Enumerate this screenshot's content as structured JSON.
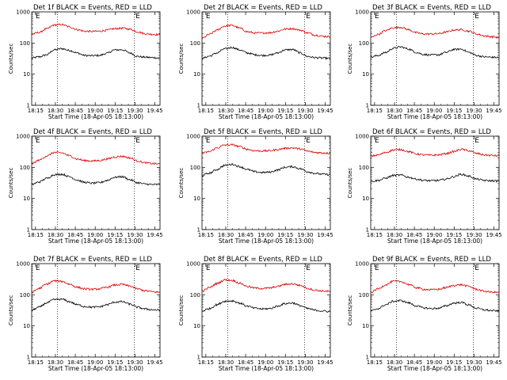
{
  "chart_data": [
    {
      "type": "line",
      "title": "Det 1f BLACK = Events, RED = LLD",
      "xlabel": "Start Time (18-Apr-05 18:13:00)",
      "ylabel": "Counts/sec",
      "yscale": "log",
      "ylim": [
        1,
        1000
      ],
      "x_tick_labels": [
        "18:15",
        "18:30",
        "18:45",
        "19:00",
        "19:15",
        "19:30",
        "19:45"
      ],
      "y_tick_labels": [
        "1",
        "10",
        "100",
        "1000"
      ],
      "event_marker_label": "E",
      "series": [
        {
          "color": "#000000",
          "values": [
            33,
            36,
            42,
            60,
            66,
            58,
            48,
            40,
            39,
            40,
            47,
            60,
            61,
            48,
            37,
            35,
            34,
            33
          ]
        },
        {
          "color": "#dd0000",
          "values": [
            190,
            220,
            285,
            380,
            390,
            330,
            270,
            240,
            235,
            240,
            260,
            290,
            300,
            280,
            230,
            200,
            190,
            185
          ]
        }
      ]
    },
    {
      "type": "line",
      "title": "Det 2f BLACK = Events, RED = LLD",
      "xlabel": "Start Time (18-Apr-05 18:13:00)",
      "ylabel": "Counts/sec",
      "yscale": "log",
      "ylim": [
        1,
        1000
      ],
      "x_tick_labels": [
        "18:15",
        "18:30",
        "18:45",
        "19:00",
        "19:15",
        "19:30",
        "19:45"
      ],
      "y_tick_labels": [
        "1",
        "10",
        "100",
        "1000"
      ],
      "event_marker_label": "E",
      "series": [
        {
          "color": "#000000",
          "values": [
            32,
            38,
            48,
            65,
            72,
            60,
            48,
            42,
            40,
            41,
            48,
            60,
            62,
            48,
            37,
            34,
            33,
            32
          ]
        },
        {
          "color": "#dd0000",
          "values": [
            140,
            190,
            260,
            350,
            370,
            300,
            230,
            210,
            210,
            215,
            240,
            280,
            290,
            260,
            210,
            180,
            165,
            160
          ]
        }
      ]
    },
    {
      "type": "line",
      "title": "Det 3f BLACK = Events, RED = LLD",
      "xlabel": "Start Time (18-Apr-05 18:13:00)",
      "ylabel": "Counts/sec",
      "yscale": "log",
      "ylim": [
        1,
        1000
      ],
      "x_tick_labels": [
        "18:15",
        "18:30",
        "18:45",
        "19:00",
        "19:15",
        "19:30",
        "19:45"
      ],
      "y_tick_labels": [
        "1",
        "10",
        "100",
        "1000"
      ],
      "event_marker_label": "E",
      "series": [
        {
          "color": "#000000",
          "values": [
            35,
            40,
            50,
            68,
            75,
            64,
            50,
            43,
            41,
            42,
            50,
            62,
            64,
            50,
            40,
            36,
            35,
            34
          ]
        },
        {
          "color": "#dd0000",
          "values": [
            150,
            190,
            250,
            310,
            320,
            270,
            215,
            195,
            195,
            200,
            225,
            260,
            270,
            240,
            195,
            170,
            160,
            150
          ]
        }
      ]
    },
    {
      "type": "line",
      "title": "Det 4f BLACK = Events, RED = LLD",
      "xlabel": "Start Time (18-Apr-05 18:13:00)",
      "ylabel": "Counts/sec",
      "yscale": "log",
      "ylim": [
        1,
        1000
      ],
      "x_tick_labels": [
        "18:15",
        "18:30",
        "18:45",
        "19:00",
        "19:15",
        "19:30",
        "19:45"
      ],
      "y_tick_labels": [
        "1",
        "10",
        "100",
        "1000"
      ],
      "event_marker_label": "E",
      "series": [
        {
          "color": "#000000",
          "values": [
            28,
            34,
            44,
            58,
            60,
            50,
            39,
            33,
            31,
            32,
            38,
            48,
            50,
            40,
            32,
            29,
            28,
            28
          ]
        },
        {
          "color": "#dd0000",
          "values": [
            130,
            170,
            230,
            300,
            290,
            235,
            185,
            165,
            160,
            165,
            185,
            215,
            225,
            200,
            160,
            140,
            132,
            128
          ]
        }
      ]
    },
    {
      "type": "line",
      "title": "Det 5f BLACK = Events, RED = LLD",
      "xlabel": "Start Time (18-Apr-05 18:13:00)",
      "ylabel": "Counts/sec",
      "yscale": "log",
      "ylim": [
        1,
        1000
      ],
      "x_tick_labels": [
        "18:15",
        "18:30",
        "18:45",
        "19:00",
        "19:15",
        "19:30",
        "19:45"
      ],
      "y_tick_labels": [
        "1",
        "10",
        "100",
        "1000"
      ],
      "event_marker_label": "E",
      "series": [
        {
          "color": "#000000",
          "values": [
            55,
            65,
            85,
            115,
            125,
            105,
            85,
            72,
            68,
            70,
            82,
            100,
            105,
            90,
            72,
            64,
            60,
            58
          ]
        },
        {
          "color": "#dd0000",
          "values": [
            280,
            320,
            420,
            520,
            530,
            460,
            380,
            340,
            335,
            340,
            370,
            410,
            420,
            390,
            330,
            300,
            290,
            285
          ]
        }
      ]
    },
    {
      "type": "line",
      "title": "Det 6f BLACK = Events, RED = LLD",
      "xlabel": "Start Time (18-Apr-05 18:13:00)",
      "ylabel": "Counts/sec",
      "yscale": "log",
      "ylim": [
        1,
        1000
      ],
      "x_tick_labels": [
        "18:15",
        "18:30",
        "18:45",
        "19:00",
        "19:15",
        "19:30",
        "19:45"
      ],
      "y_tick_labels": [
        "1",
        "10",
        "100",
        "1000"
      ],
      "event_marker_label": "E",
      "series": [
        {
          "color": "#000000",
          "values": [
            35,
            38,
            45,
            55,
            56,
            48,
            42,
            38,
            37,
            38,
            42,
            50,
            60,
            52,
            42,
            38,
            37,
            36
          ]
        },
        {
          "color": "#dd0000",
          "values": [
            230,
            250,
            300,
            360,
            370,
            320,
            270,
            250,
            245,
            250,
            275,
            320,
            380,
            340,
            280,
            250,
            240,
            235
          ]
        }
      ]
    },
    {
      "type": "line",
      "title": "Det 7f BLACK = Events, RED = LLD",
      "xlabel": "Start Time (18-Apr-05 18:13:00)",
      "ylabel": "Counts/sec",
      "yscale": "log",
      "ylim": [
        1,
        1000
      ],
      "x_tick_labels": [
        "18:15",
        "18:30",
        "18:45",
        "19:00",
        "19:15",
        "19:30",
        "19:45"
      ],
      "y_tick_labels": [
        "1",
        "10",
        "100",
        "1000"
      ],
      "event_marker_label": "E",
      "series": [
        {
          "color": "#000000",
          "values": [
            32,
            40,
            55,
            70,
            72,
            60,
            48,
            42,
            40,
            41,
            48,
            58,
            60,
            50,
            40,
            35,
            33,
            32
          ]
        },
        {
          "color": "#dd0000",
          "values": [
            120,
            160,
            220,
            280,
            270,
            220,
            175,
            155,
            150,
            155,
            175,
            205,
            215,
            190,
            155,
            135,
            125,
            120
          ]
        }
      ]
    },
    {
      "type": "line",
      "title": "Det 8f BLACK = Events, RED = LLD",
      "xlabel": "Start Time (18-Apr-05 18:13:00)",
      "ylabel": "Counts/sec",
      "yscale": "log",
      "ylim": [
        1,
        1000
      ],
      "x_tick_labels": [
        "18:15",
        "18:30",
        "18:45",
        "19:00",
        "19:15",
        "19:30",
        "19:45"
      ],
      "y_tick_labels": [
        "1",
        "10",
        "100",
        "1000"
      ],
      "event_marker_label": "E",
      "series": [
        {
          "color": "#000000",
          "values": [
            30,
            36,
            48,
            62,
            64,
            54,
            43,
            37,
            35,
            36,
            43,
            52,
            55,
            45,
            36,
            32,
            30,
            29
          ]
        },
        {
          "color": "#dd0000",
          "values": [
            130,
            170,
            230,
            300,
            290,
            235,
            185,
            165,
            160,
            165,
            185,
            215,
            225,
            200,
            160,
            140,
            132,
            128
          ]
        }
      ]
    },
    {
      "type": "line",
      "title": "Det 9f BLACK = Events, RED = LLD",
      "xlabel": "Start Time (18-Apr-05 18:13:00)",
      "ylabel": "Counts/sec",
      "yscale": "log",
      "ylim": [
        1,
        1000
      ],
      "x_tick_labels": [
        "18:15",
        "18:30",
        "18:45",
        "19:00",
        "19:15",
        "19:30",
        "19:45"
      ],
      "y_tick_labels": [
        "1",
        "10",
        "100",
        "1000"
      ],
      "event_marker_label": "E",
      "series": [
        {
          "color": "#000000",
          "values": [
            30,
            36,
            48,
            62,
            65,
            55,
            44,
            38,
            36,
            37,
            44,
            54,
            57,
            47,
            37,
            33,
            31,
            30
          ]
        },
        {
          "color": "#dd0000",
          "values": [
            120,
            155,
            210,
            270,
            265,
            215,
            170,
            150,
            145,
            150,
            170,
            200,
            210,
            185,
            150,
            130,
            122,
            118
          ]
        }
      ]
    }
  ]
}
